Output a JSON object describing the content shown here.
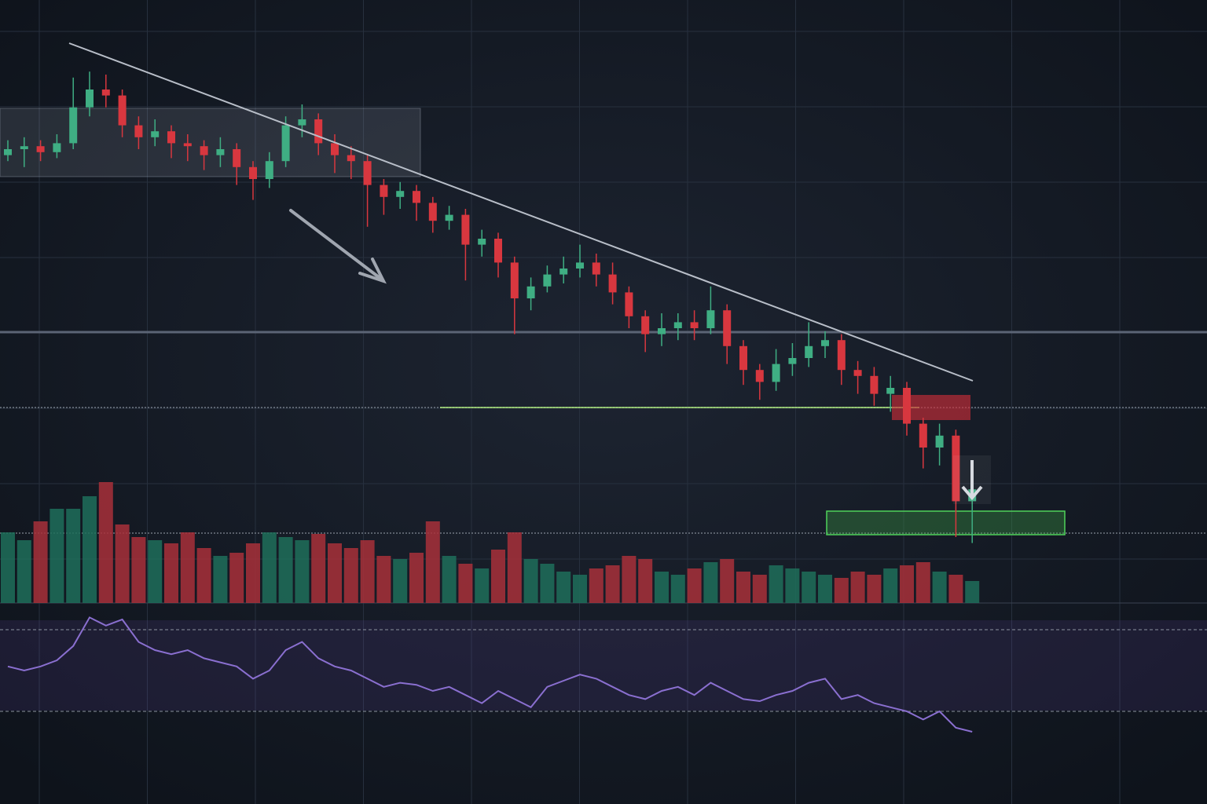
{
  "chart_data": [
    {
      "type": "candlestick",
      "up_color": "#3fae83",
      "down_color": "#d8373f",
      "grid": true,
      "ylim": [
        0,
        100
      ],
      "open": [
        74,
        75,
        75.5,
        74.5,
        76,
        82,
        85,
        84,
        79,
        77,
        78,
        76,
        75.5,
        74,
        75,
        72,
        70,
        73,
        79,
        80,
        76,
        74,
        73,
        69,
        67,
        68,
        66,
        63,
        64,
        59,
        60,
        56,
        50,
        52,
        54,
        55,
        56,
        54,
        51,
        47,
        44,
        45,
        46,
        45,
        48,
        42,
        38,
        36,
        39,
        40,
        42,
        43,
        38,
        37,
        34,
        35,
        29,
        25,
        27,
        16
      ],
      "high": [
        76.5,
        77,
        76.5,
        77.5,
        87,
        88,
        87.5,
        85,
        80.5,
        80,
        79,
        77.5,
        76.5,
        77,
        76,
        73,
        74.5,
        80.5,
        82.5,
        81,
        77.5,
        75.5,
        74,
        70,
        69.5,
        69,
        67,
        65.5,
        65,
        61.5,
        61,
        57,
        53.5,
        55.5,
        57,
        59,
        57.5,
        56,
        52,
        48,
        47.5,
        47.5,
        48,
        52,
        49,
        43,
        39,
        41.5,
        42.5,
        46,
        44.5,
        44,
        39.5,
        38.5,
        37,
        36,
        30,
        29,
        28,
        19.5
      ],
      "low": [
        73,
        72,
        73,
        73.5,
        75,
        80.5,
        82,
        77,
        75,
        75.5,
        73.5,
        73,
        71.5,
        72,
        69,
        66.5,
        68.5,
        72,
        77,
        74,
        71,
        70,
        62,
        64,
        65,
        63,
        61,
        61.5,
        53,
        57,
        53.5,
        44,
        48,
        51,
        52.5,
        53.5,
        52,
        49,
        45,
        41,
        42,
        43,
        43,
        44,
        39,
        35.5,
        33,
        34.5,
        37,
        38.5,
        40,
        35.5,
        34,
        32,
        31,
        27,
        21.5,
        22,
        10,
        9
      ],
      "close": [
        75,
        75.5,
        74.5,
        76,
        82,
        85,
        84,
        79,
        77,
        78,
        76,
        75.5,
        74,
        75,
        72,
        70,
        73,
        79,
        80,
        76,
        74,
        73,
        69,
        67,
        68,
        66,
        63,
        64,
        59,
        60,
        56,
        50,
        52,
        54,
        55,
        56,
        54,
        51,
        47,
        44,
        45,
        46,
        45,
        48,
        42,
        38,
        36,
        39,
        40,
        42,
        43,
        38,
        37,
        34,
        35,
        29,
        25,
        27,
        16,
        18
      ]
    },
    {
      "type": "bar",
      "up_color": "#1f6e5a",
      "down_color": "#a8303a",
      "ylim": [
        0,
        100
      ],
      "values": [
        45,
        40,
        52,
        60,
        60,
        68,
        77,
        50,
        42,
        40,
        38,
        45,
        35,
        30,
        32,
        38,
        45,
        42,
        40,
        44,
        38,
        35,
        40,
        30,
        28,
        32,
        52,
        30,
        25,
        22,
        34,
        45,
        28,
        25,
        20,
        18,
        22,
        24,
        30,
        28,
        20,
        18,
        22,
        26,
        28,
        20,
        18,
        24,
        22,
        20,
        18,
        16,
        20,
        18,
        22,
        24,
        26,
        20,
        18,
        14
      ]
    },
    {
      "type": "line",
      "color": "#8a6fd0",
      "ylim": [
        0,
        100
      ],
      "levels": [
        30,
        70
      ],
      "values": [
        52,
        50,
        52,
        55,
        62,
        76,
        72,
        75,
        64,
        60,
        58,
        60,
        56,
        54,
        52,
        46,
        50,
        60,
        64,
        56,
        52,
        50,
        46,
        42,
        44,
        43,
        40,
        42,
        38,
        34,
        40,
        36,
        32,
        42,
        45,
        48,
        46,
        42,
        38,
        36,
        40,
        42,
        38,
        44,
        40,
        36,
        35,
        38,
        40,
        44,
        46,
        36,
        38,
        34,
        32,
        30,
        26,
        30,
        22,
        20
      ]
    }
  ]
}
